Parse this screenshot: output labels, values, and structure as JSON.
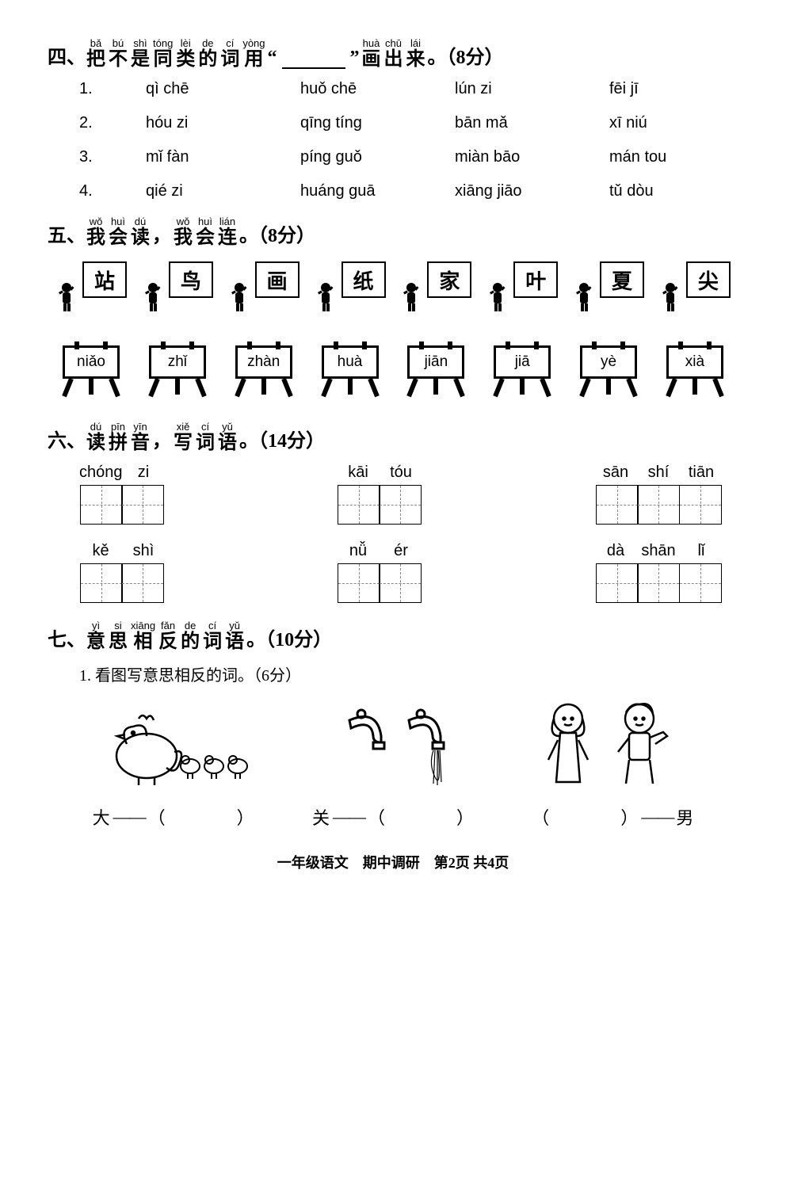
{
  "s4": {
    "num": "四、",
    "title_ruby": [
      {
        "py": "bǎ",
        "hz": "把"
      },
      {
        "py": "bú",
        "hz": "不"
      },
      {
        "py": "shì",
        "hz": "是"
      },
      {
        "py": "tóng",
        "hz": "同"
      },
      {
        "py": "lèi",
        "hz": "类"
      },
      {
        "py": "de",
        "hz": "的"
      },
      {
        "py": "cí",
        "hz": "词"
      },
      {
        "py": "yòng",
        "hz": "用"
      }
    ],
    "quote_open": "“",
    "quote_close": "”",
    "title_ruby2": [
      {
        "py": "huà",
        "hz": "画"
      },
      {
        "py": "chū",
        "hz": "出"
      },
      {
        "py": "lái",
        "hz": "来"
      }
    ],
    "tail": "。（8分）",
    "rows": [
      {
        "idx": "1.",
        "w": [
          "qì chē",
          "huǒ chē",
          "lún zi",
          "fēi jī"
        ]
      },
      {
        "idx": "2.",
        "w": [
          "hóu zi",
          "qīng tíng",
          "bān mǎ",
          "xī niú"
        ]
      },
      {
        "idx": "3.",
        "w": [
          "mǐ fàn",
          "píng guǒ",
          "miàn bāo",
          "mán tou"
        ]
      },
      {
        "idx": "4.",
        "w": [
          "qié zi",
          "huáng guā",
          "xiāng jiāo",
          "tǔ dòu"
        ]
      }
    ]
  },
  "s5": {
    "num": "五、",
    "r1": [
      {
        "py": "wǒ",
        "hz": "我"
      },
      {
        "py": "huì",
        "hz": "会"
      },
      {
        "py": "dú",
        "hz": "读"
      }
    ],
    "comma": "，",
    "r2": [
      {
        "py": "wǒ",
        "hz": "我"
      },
      {
        "py": "huì",
        "hz": "会"
      },
      {
        "py": "lián",
        "hz": "连"
      }
    ],
    "tail": "。（8分）",
    "cards": [
      "站",
      "鸟",
      "画",
      "纸",
      "家",
      "叶",
      "夏",
      "尖"
    ],
    "easels": [
      "niǎo",
      "zhǐ",
      "zhàn",
      "huà",
      "jiān",
      "jiā",
      "yè",
      "xià"
    ]
  },
  "s6": {
    "num": "六、",
    "r1": [
      {
        "py": "dú",
        "hz": "读"
      },
      {
        "py": "pīn",
        "hz": "拼"
      },
      {
        "py": "yīn",
        "hz": "音"
      }
    ],
    "comma": "，",
    "r2": [
      {
        "py": "xiě",
        "hz": "写"
      },
      {
        "py": "cí",
        "hz": "词"
      },
      {
        "py": "yǔ",
        "hz": "语"
      }
    ],
    "tail": "。（14分）",
    "row1": [
      {
        "py": [
          "chóng",
          "zi"
        ],
        "cells": 2
      },
      {
        "py": [
          "kāi",
          "tóu"
        ],
        "cells": 2
      },
      {
        "py": [
          "sān",
          "shí",
          "tiān"
        ],
        "cells": 3
      }
    ],
    "row2": [
      {
        "py": [
          "kě",
          "shì"
        ],
        "cells": 2
      },
      {
        "py": [
          "nǚ",
          "ér"
        ],
        "cells": 2
      },
      {
        "py": [
          "dà",
          "shān",
          "lǐ"
        ],
        "cells": 3
      }
    ]
  },
  "s7": {
    "num": "七、",
    "r": [
      {
        "py": "yì",
        "hz": "意"
      },
      {
        "py": "si",
        "hz": "思"
      },
      {
        "py": "xiāng",
        "hz": "相"
      },
      {
        "py": "fǎn",
        "hz": "反"
      },
      {
        "py": "de",
        "hz": "的"
      },
      {
        "py": "cí",
        "hz": "词"
      },
      {
        "py": "yǔ",
        "hz": "语"
      }
    ],
    "tail": "。（10分）",
    "sub": "1.  看图写意思相反的词。（6分）",
    "answers": [
      {
        "left": "大",
        "mode": "lr"
      },
      {
        "left": "关",
        "mode": "lr"
      },
      {
        "right": "男",
        "mode": "rl"
      }
    ]
  },
  "footer": "一年级语文　期中调研　第2页 共4页"
}
